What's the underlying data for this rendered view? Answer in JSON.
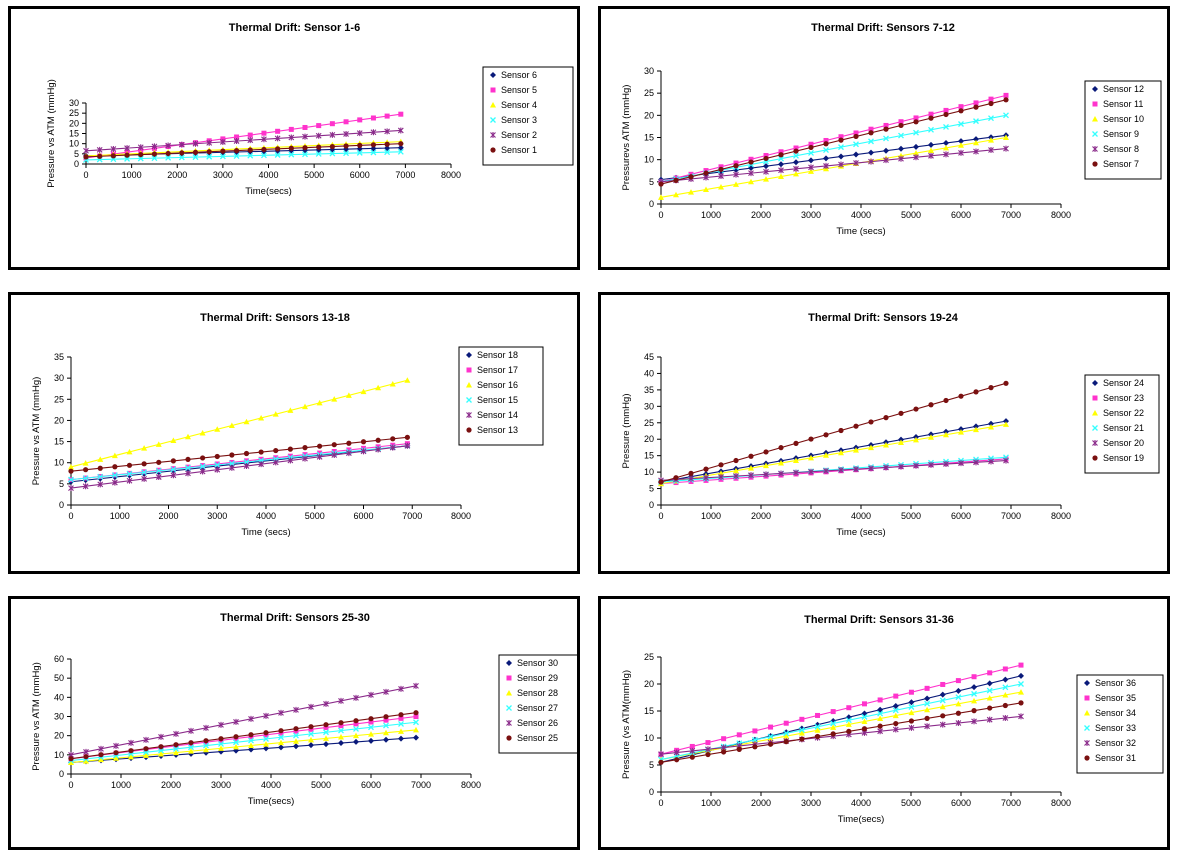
{
  "colors": {
    "s1": "#0a1a7a",
    "s2": "#ff33cc",
    "s3": "#ffff00",
    "s4": "#33ffff",
    "s5": "#8a2a8a",
    "s6": "#7a1010",
    "note": "series colors by legend position: navy diamond, magenta square, yellow triangle, cyan x, purple x, dark-red circle"
  },
  "chart_data": [
    {
      "type": "scatter",
      "title": "Thermal Drift: Sensor 1-6",
      "xlabel": "Time(secs)",
      "ylabel": "Pressure vs ATM (mmHg)",
      "xlim": [
        0,
        8000
      ],
      "ylim": [
        0,
        30
      ],
      "xticks": [
        "0",
        "1000",
        "2000",
        "3000",
        "4000",
        "5000",
        "6000",
        "7000",
        "8000"
      ],
      "yticks": [
        "0",
        "5",
        "10",
        "15",
        "20",
        "25",
        "30"
      ],
      "grid": false,
      "legend_position": "right",
      "trendlines": true,
      "x_range": [
        0,
        6900
      ],
      "series": [
        {
          "name": "Sensor 6",
          "start": 4,
          "end": 8
        },
        {
          "name": "Sensor 5",
          "start": 3,
          "end": 24.5
        },
        {
          "name": "Sensor 4",
          "start": 4,
          "end": 11
        },
        {
          "name": "Sensor 3",
          "start": 2,
          "end": 6
        },
        {
          "name": "Sensor 2",
          "start": 6.5,
          "end": 16.5
        },
        {
          "name": "Sensor 1",
          "start": 3.5,
          "end": 10
        }
      ]
    },
    {
      "type": "scatter",
      "title": "Thermal Drift: Sensors 7-12",
      "xlabel": "Time (secs)",
      "ylabel": "Pressurevs ATM (mmHg)",
      "xlim": [
        0,
        8000
      ],
      "ylim": [
        0,
        30
      ],
      "xticks": [
        "0",
        "1000",
        "2000",
        "3000",
        "4000",
        "5000",
        "6000",
        "7000",
        "8000"
      ],
      "yticks": [
        "0",
        "5",
        "10",
        "15",
        "20",
        "25",
        "30"
      ],
      "grid": false,
      "legend_position": "right",
      "trendlines": true,
      "x_range": [
        0,
        6900
      ],
      "series": [
        {
          "name": "Sensor 12",
          "start": 5.5,
          "end": 15.5
        },
        {
          "name": "Sensor 11",
          "start": 5,
          "end": 24.5
        },
        {
          "name": "Sensor 10",
          "start": 1.5,
          "end": 15
        },
        {
          "name": "Sensor 9",
          "start": 5,
          "end": 20
        },
        {
          "name": "Sensor 8",
          "start": 5,
          "end": 12.5
        },
        {
          "name": "Sensor 7",
          "start": 4.5,
          "end": 23.5
        }
      ]
    },
    {
      "type": "scatter",
      "title": "Thermal Drift:  Sensors 13-18",
      "xlabel": "Time (secs)",
      "ylabel": "Pressure vs ATM (mmHg)",
      "xlim": [
        0,
        8000
      ],
      "ylim": [
        0,
        35
      ],
      "xticks": [
        "0",
        "1000",
        "2000",
        "3000",
        "4000",
        "5000",
        "6000",
        "7000",
        "8000"
      ],
      "yticks": [
        "0",
        "5",
        "10",
        "15",
        "20",
        "25",
        "30",
        "35"
      ],
      "grid": false,
      "legend_position": "right",
      "trendlines": true,
      "x_range": [
        0,
        6900
      ],
      "series": [
        {
          "name": "Sensor 18",
          "start": 5.5,
          "end": 14
        },
        {
          "name": "Sensor 17",
          "start": 6,
          "end": 14.5
        },
        {
          "name": "Sensor 16",
          "start": 9,
          "end": 29.5
        },
        {
          "name": "Sensor 15",
          "start": 6,
          "end": 14
        },
        {
          "name": "Sensor 14",
          "start": 4,
          "end": 14
        },
        {
          "name": "Sensor 13",
          "start": 8,
          "end": 16
        }
      ]
    },
    {
      "type": "scatter",
      "title": "Thermal Drift:  Sensors 19-24",
      "xlabel": "Time (secs)",
      "ylabel": "Pressure (mmHg)",
      "xlim": [
        0,
        8000
      ],
      "ylim": [
        0,
        45
      ],
      "xticks": [
        "0",
        "1000",
        "2000",
        "3000",
        "4000",
        "5000",
        "6000",
        "7000",
        "8000"
      ],
      "yticks": [
        "0",
        "5",
        "10",
        "15",
        "20",
        "25",
        "30",
        "35",
        "40",
        "45"
      ],
      "grid": false,
      "legend_position": "right",
      "trendlines": true,
      "x_range": [
        0,
        6900
      ],
      "series": [
        {
          "name": "Sensor 24",
          "start": 7,
          "end": 25.5
        },
        {
          "name": "Sensor 23",
          "start": 6.5,
          "end": 14
        },
        {
          "name": "Sensor 22",
          "start": 6.5,
          "end": 24.5
        },
        {
          "name": "Sensor 21",
          "start": 7,
          "end": 14.5
        },
        {
          "name": "Sensor 20",
          "start": 7.5,
          "end": 13.5
        },
        {
          "name": "Sensor 19",
          "start": 7,
          "end": 37
        }
      ]
    },
    {
      "type": "scatter",
      "title": "Thermal Drift: Sensors 25-30",
      "xlabel": "Time(secs)",
      "ylabel": "Pressure vs ATM (mmHg)",
      "xlim": [
        0,
        8000
      ],
      "ylim": [
        0,
        60
      ],
      "xticks": [
        "0",
        "1000",
        "2000",
        "3000",
        "4000",
        "5000",
        "6000",
        "7000",
        "8000"
      ],
      "yticks": [
        "0",
        "10",
        "20",
        "30",
        "40",
        "50",
        "60"
      ],
      "grid": false,
      "legend_position": "right",
      "trendlines": true,
      "x_range": [
        0,
        6900
      ],
      "series": [
        {
          "name": "Sensor 30",
          "start": 6,
          "end": 19
        },
        {
          "name": "Sensor 29",
          "start": 8,
          "end": 30
        },
        {
          "name": "Sensor 28",
          "start": 6,
          "end": 23
        },
        {
          "name": "Sensor 27",
          "start": 7,
          "end": 27
        },
        {
          "name": "Sensor 26",
          "start": 10,
          "end": 46
        },
        {
          "name": "Sensor 25",
          "start": 8,
          "end": 32
        }
      ]
    },
    {
      "type": "scatter",
      "title": "Thermal Drift: Sensors 31-36",
      "xlabel": "Time(secs)",
      "ylabel": "Pressure (vs ATM(mmHg)",
      "xlim": [
        0,
        8000
      ],
      "ylim": [
        0,
        25
      ],
      "xticks": [
        "0",
        "1000",
        "2000",
        "3000",
        "4000",
        "5000",
        "6000",
        "7000",
        "8000"
      ],
      "yticks": [
        "0",
        "5",
        "10",
        "15",
        "20",
        "25"
      ],
      "grid": false,
      "legend_position": "right",
      "trendlines": true,
      "x_range": [
        0,
        7200
      ],
      "series": [
        {
          "name": "Sensor 36",
          "start": 5.5,
          "end": 21.5
        },
        {
          "name": "Sensor 35",
          "start": 7,
          "end": 23.5
        },
        {
          "name": "Sensor 34",
          "start": 6,
          "end": 18.5
        },
        {
          "name": "Sensor 33",
          "start": 6,
          "end": 20
        },
        {
          "name": "Sensor 32",
          "start": 7,
          "end": 14
        },
        {
          "name": "Sensor 31",
          "start": 5.5,
          "end": 16.5
        }
      ]
    }
  ]
}
